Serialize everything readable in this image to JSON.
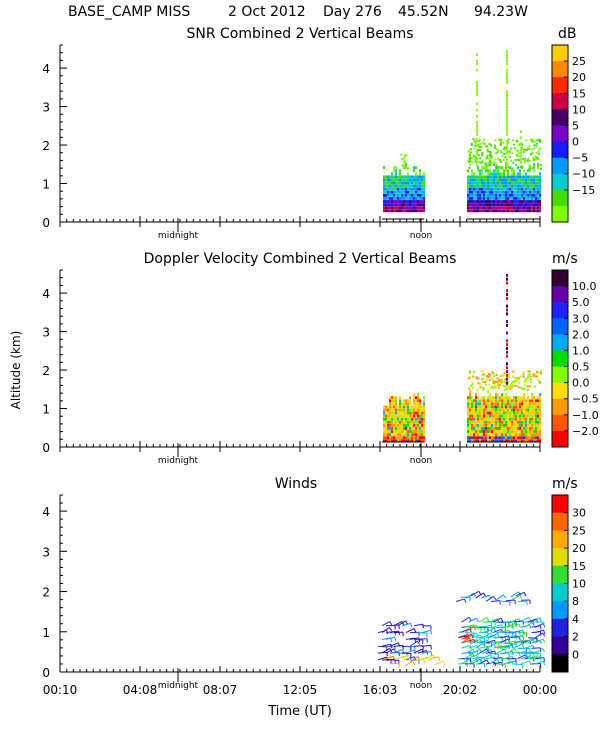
{
  "header": {
    "station": "BASE_CAMP MISS",
    "date": "2 Oct 2012",
    "day": "Day 276",
    "lat": "45.52N",
    "lon": "94.23W"
  },
  "chart_data": [
    {
      "type": "heatmap",
      "title": "SNR Combined 2 Vertical Beams",
      "ylabel": "",
      "ylim": [
        0,
        4.6
      ],
      "yticks": [
        "0",
        "1",
        "2",
        "3",
        "4"
      ],
      "marker_labels": [
        "midnight",
        "noon"
      ],
      "colorbar": {
        "unit": "dB",
        "labels": [
          "25",
          "20",
          "15",
          "10",
          "5",
          "0",
          "−5",
          "−10",
          "−15"
        ],
        "colors": [
          "#ffcc00",
          "#ff8800",
          "#ff2a00",
          "#cc0044",
          "#440066",
          "#7a00cc",
          "#1a1aff",
          "#0099ff",
          "#00cccc",
          "#44dd00",
          "#7fff00"
        ]
      }
    },
    {
      "type": "heatmap",
      "title": "Doppler Velocity Combined 2 Vertical Beams",
      "ylabel": "Altitude (km)",
      "ylim": [
        0,
        4.6
      ],
      "yticks": [
        "0",
        "1",
        "2",
        "3",
        "4"
      ],
      "marker_labels": [
        "midnight",
        "noon"
      ],
      "colorbar": {
        "unit": "m/s",
        "labels": [
          "10.0",
          "5.0",
          "3.0",
          "2.0",
          "1.0",
          "0.5",
          "0.0",
          "−0.5",
          "−1.0",
          "−2.0"
        ],
        "colors": [
          "#330033",
          "#6600aa",
          "#2222ff",
          "#0066ff",
          "#00aaff",
          "#00dd00",
          "#88ff00",
          "#ffdd00",
          "#ff9900",
          "#ff5500",
          "#ff0000"
        ]
      }
    },
    {
      "type": "scatter",
      "title": "Winds",
      "ylabel": "",
      "xlabel": "Time (UT)",
      "ylim": [
        0,
        4.4
      ],
      "yticks": [
        "0",
        "1",
        "2",
        "3",
        "4"
      ],
      "xticks": [
        "00:10",
        "04:08",
        "08:07",
        "12:05",
        "16:03",
        "20:02",
        "00:00"
      ],
      "marker_labels": [
        "midnight",
        "noon"
      ],
      "colorbar": {
        "unit": "m/s",
        "labels": [
          "30",
          "25",
          "20",
          "15",
          "10",
          "8",
          "4",
          "2",
          "0"
        ],
        "colors": [
          "#ff0000",
          "#ff6600",
          "#ffaa00",
          "#dddd00",
          "#33dd33",
          "#00cccc",
          "#0099ff",
          "#2222dd",
          "#330099",
          "#000000"
        ]
      }
    }
  ]
}
